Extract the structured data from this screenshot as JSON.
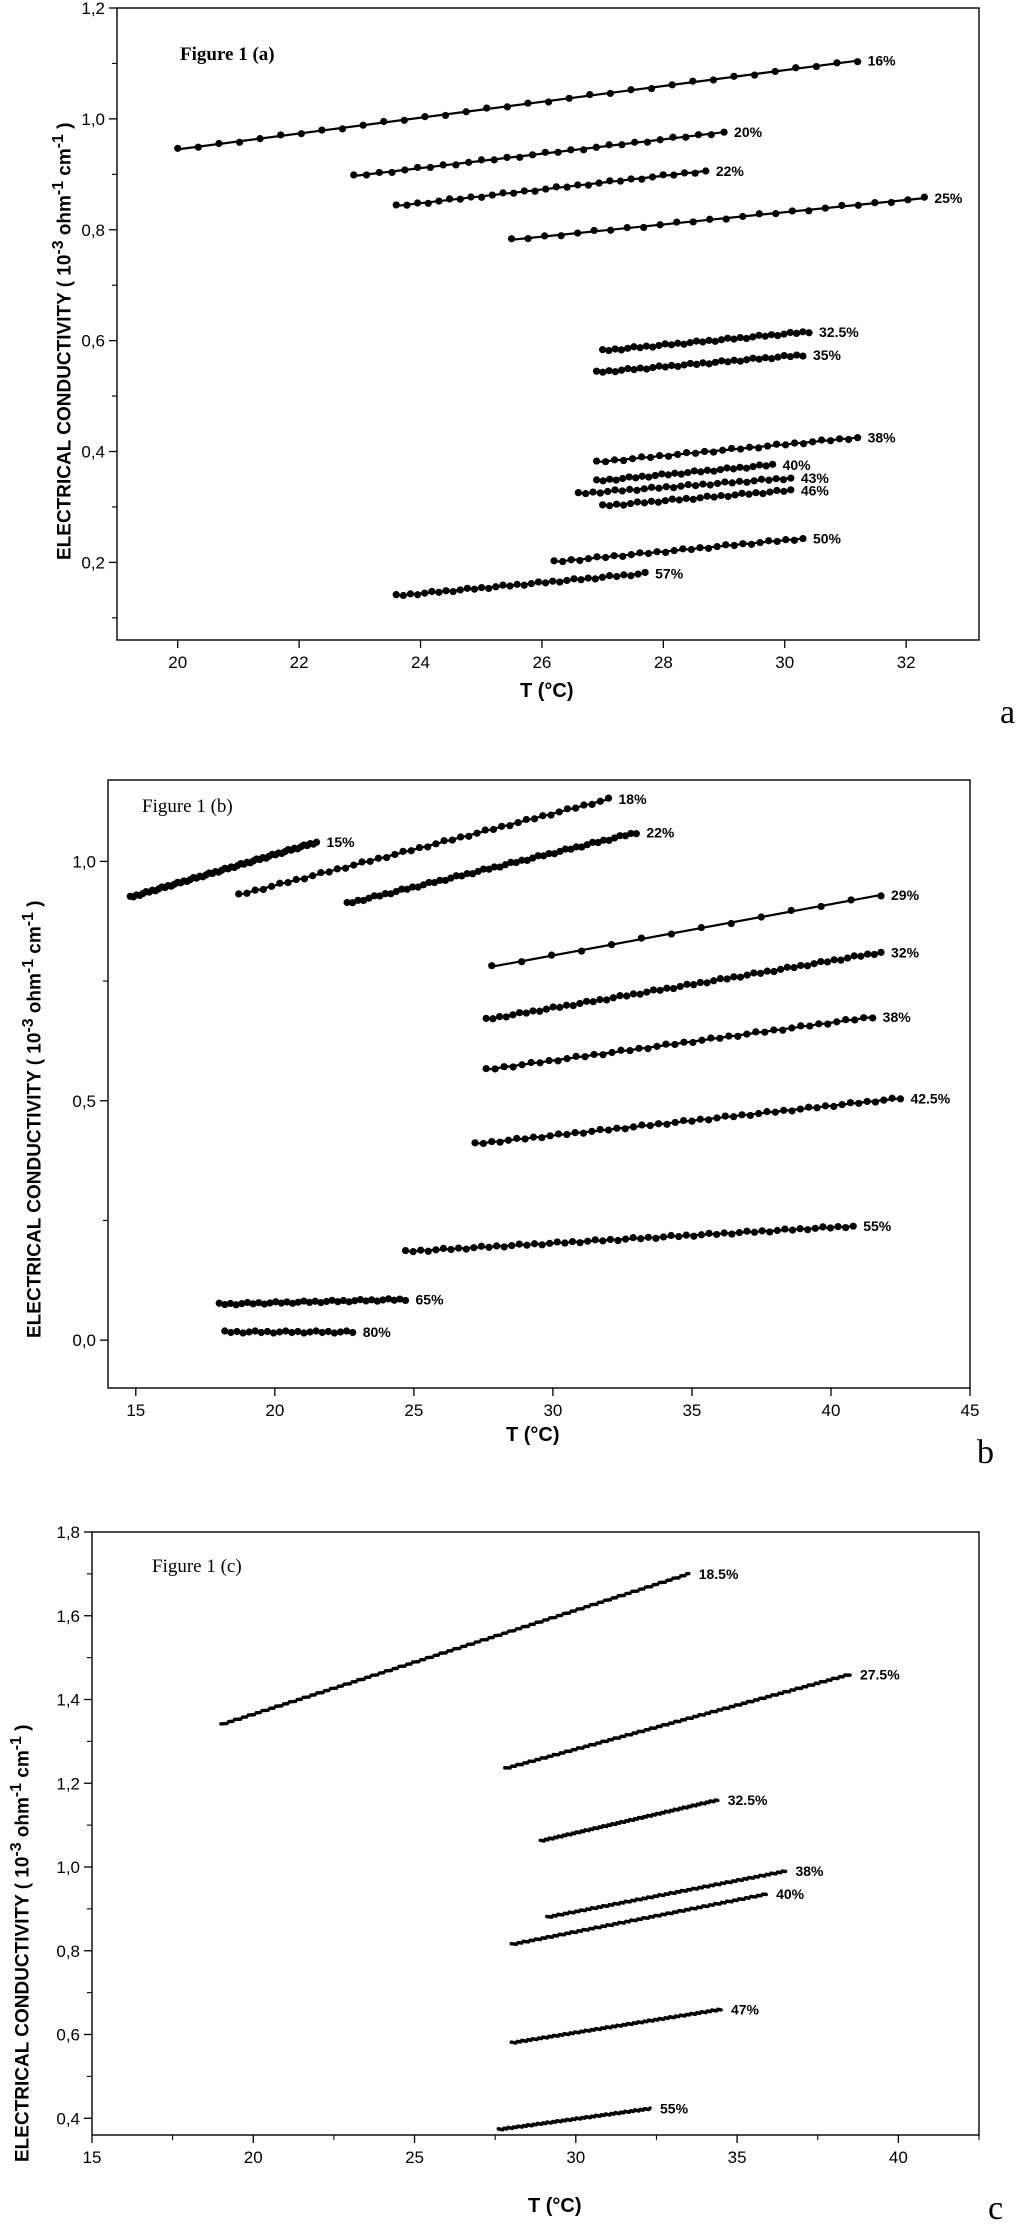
{
  "chart_data": [
    {
      "type": "line",
      "panel_label": "a",
      "title": "Figure 1 (a)",
      "xlabel": "T (°C)",
      "ylabel": "ELECTRICAL CONDUCTIVITY ( 10-3 ohm-1 cm-1 )",
      "ylabel_parts": {
        "pre": "ELECTRICAL CONDUCTIVITY ( 10",
        "sup1": "-3",
        "mid": " ohm",
        "sup2": "-1",
        "mid2": " cm",
        "sup3": "-1",
        "post": " )"
      },
      "xlim": [
        19,
        33.2
      ],
      "ylim": [
        0.06,
        1.2
      ],
      "xticks": [
        20,
        22,
        24,
        26,
        28,
        30,
        32
      ],
      "xtick_labels": [
        "20",
        "22",
        "24",
        "26",
        "28",
        "30",
        "32"
      ],
      "yticks": [
        0.2,
        0.4,
        0.6,
        0.8,
        1.0,
        1.2
      ],
      "ytick_labels": [
        "0,2",
        "0,4",
        "0,6",
        "0,8",
        "1,0",
        "1,2"
      ],
      "grid": false,
      "series": [
        {
          "name": "16%",
          "x": [
            20.0,
            31.2
          ],
          "y": [
            0.945,
            1.105
          ],
          "n": 34
        },
        {
          "name": "20%",
          "x": [
            22.9,
            29.0
          ],
          "y": [
            0.897,
            0.976
          ],
          "n": 30
        },
        {
          "name": "22%",
          "x": [
            23.6,
            28.7
          ],
          "y": [
            0.843,
            0.906
          ],
          "n": 30
        },
        {
          "name": "25%",
          "x": [
            25.5,
            32.3
          ],
          "y": [
            0.782,
            0.857
          ],
          "n": 26
        },
        {
          "name": "32.5%",
          "x": [
            27.0,
            30.4
          ],
          "y": [
            0.582,
            0.616
          ],
          "n": 34
        },
        {
          "name": "35%",
          "x": [
            26.9,
            30.3
          ],
          "y": [
            0.543,
            0.574
          ],
          "n": 34
        },
        {
          "name": "38%",
          "x": [
            26.9,
            31.2
          ],
          "y": [
            0.381,
            0.425
          ],
          "n": 30
        },
        {
          "name": "40%",
          "x": [
            26.9,
            29.8
          ],
          "y": [
            0.347,
            0.376
          ],
          "n": 28
        },
        {
          "name": "43%",
          "x": [
            26.6,
            30.1
          ],
          "y": [
            0.324,
            0.352
          ],
          "n": 30
        },
        {
          "name": "46%",
          "x": [
            27.0,
            30.1
          ],
          "y": [
            0.302,
            0.33
          ],
          "n": 28
        },
        {
          "name": "50%",
          "x": [
            26.2,
            30.3
          ],
          "y": [
            0.201,
            0.243
          ],
          "n": 30
        },
        {
          "name": "57%",
          "x": [
            23.6,
            27.7
          ],
          "y": [
            0.14,
            0.18
          ],
          "n": 36
        }
      ]
    },
    {
      "type": "line",
      "panel_label": "b",
      "title": "Figure 1 (b)",
      "xlabel": "T (°C)",
      "ylabel": "ELECTRICAL CONDUCTIVITY ( 10-3 ohm-1 cm-1 )",
      "ylabel_parts": {
        "pre": "ELECTRICAL CONDUCTIVITY ( 10",
        "sup1": "-3",
        "mid": " ohm",
        "sup2": "-1",
        "mid2": " cm",
        "sup3": "-1",
        "post": " )"
      },
      "xlim": [
        14,
        45
      ],
      "ylim": [
        -0.1,
        1.17
      ],
      "xticks": [
        15,
        20,
        25,
        30,
        35,
        40,
        45
      ],
      "xtick_labels": [
        "15",
        "20",
        "25",
        "30",
        "35",
        "40",
        "45"
      ],
      "yticks": [
        0.0,
        0.5,
        1.0
      ],
      "ytick_labels": [
        "0,0",
        "0,5",
        "1,0"
      ],
      "grid": false,
      "series": [
        {
          "name": "15%",
          "x": [
            14.8,
            21.5
          ],
          "y": [
            0.925,
            1.04
          ],
          "n": 60
        },
        {
          "name": "18%",
          "x": [
            18.7,
            32.0
          ],
          "y": [
            0.93,
            1.13
          ],
          "n": 46
        },
        {
          "name": "22%",
          "x": [
            22.6,
            33.0
          ],
          "y": [
            0.912,
            1.06
          ],
          "n": 54
        },
        {
          "name": "29%",
          "x": [
            27.8,
            41.8
          ],
          "y": [
            0.78,
            0.93
          ],
          "n": 14
        },
        {
          "name": "32%",
          "x": [
            27.6,
            41.8
          ],
          "y": [
            0.67,
            0.81
          ],
          "n": 60
        },
        {
          "name": "38%",
          "x": [
            27.6,
            41.5
          ],
          "y": [
            0.565,
            0.675
          ],
          "n": 44
        },
        {
          "name": "42.5%",
          "x": [
            27.2,
            42.5
          ],
          "y": [
            0.41,
            0.505
          ],
          "n": 52
        },
        {
          "name": "55%",
          "x": [
            24.7,
            40.8
          ],
          "y": [
            0.185,
            0.238
          ],
          "n": 60
        },
        {
          "name": "65%",
          "x": [
            18.0,
            24.7
          ],
          "y": [
            0.075,
            0.085
          ],
          "n": 34
        },
        {
          "name": "80%",
          "x": [
            18.2,
            22.8
          ],
          "y": [
            0.017,
            0.017
          ],
          "n": 22
        }
      ]
    },
    {
      "type": "line",
      "panel_label": "c",
      "title": "Figure 1 (c)",
      "xlabel": "T (°C)",
      "ylabel": "ELECTRICAL CONDUCTIVITY ( 10-3 ohm-1 cm-1 )",
      "ylabel_parts": {
        "pre": "ELECTRICAL CONDUCTIVITY ( 10",
        "sup1": "-3",
        "mid": " ohm",
        "sup2": "-1",
        "mid2": " cm",
        "sup3": "-1",
        "post": " )"
      },
      "xlim": [
        15,
        42.5
      ],
      "ylim": [
        0.36,
        1.8
      ],
      "xticks": [
        15,
        20,
        25,
        30,
        35,
        40
      ],
      "xtick_labels": [
        "15",
        "20",
        "25",
        "30",
        "35",
        "40"
      ],
      "yticks": [
        0.4,
        0.6,
        0.8,
        1.0,
        1.2,
        1.4,
        1.6,
        1.8
      ],
      "ytick_labels": [
        "0,4",
        "0,6",
        "0,8",
        "1,0",
        "1,2",
        "1,4",
        "1,6",
        "1,8"
      ],
      "grid": false,
      "series": [
        {
          "name": "18.5%",
          "x": [
            19.0,
            33.5
          ],
          "y": [
            1.34,
            1.7
          ],
          "n": 240
        },
        {
          "name": "27.5%",
          "x": [
            27.8,
            38.5
          ],
          "y": [
            1.235,
            1.46
          ],
          "n": 200
        },
        {
          "name": "32.5%",
          "x": [
            28.9,
            34.4
          ],
          "y": [
            1.062,
            1.16
          ],
          "n": 140
        },
        {
          "name": "38%",
          "x": [
            29.1,
            36.5
          ],
          "y": [
            0.88,
            0.99
          ],
          "n": 150
        },
        {
          "name": "40%",
          "x": [
            28.0,
            35.9
          ],
          "y": [
            0.815,
            0.935
          ],
          "n": 150
        },
        {
          "name": "47%",
          "x": [
            28.0,
            34.5
          ],
          "y": [
            0.58,
            0.66
          ],
          "n": 140
        },
        {
          "name": "55%",
          "x": [
            27.6,
            32.3
          ],
          "y": [
            0.373,
            0.423
          ],
          "n": 110
        }
      ]
    }
  ]
}
